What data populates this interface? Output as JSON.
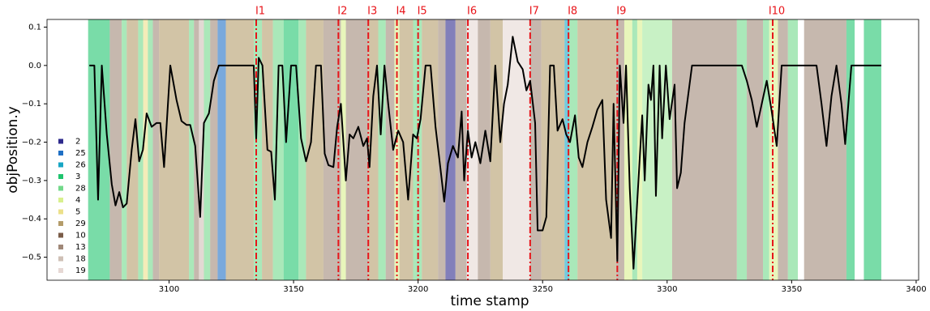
{
  "chart_data": {
    "type": "line",
    "xlabel": "time stamp",
    "ylabel": "objPosition.y",
    "xlim": [
      3051,
      3401
    ],
    "ylim": [
      -0.56,
      0.12
    ],
    "xticks": [
      3100,
      3150,
      3200,
      3250,
      3300,
      3350,
      3400
    ],
    "yticks": [
      0.1,
      {
        "value": 0,
        "label": "0.0"
      },
      {
        "value": -0.1,
        "label": "−0.1"
      },
      {
        "value": -0.2,
        "label": "−0.2"
      },
      {
        "value": -0.3,
        "label": "−0.3"
      },
      {
        "value": -0.4,
        "label": "−0.4"
      },
      {
        "value": -0.5,
        "label": "−0.5"
      }
    ],
    "legend_position": "lower left",
    "legend": [
      {
        "name": "2",
        "color": "#2e2a8c"
      },
      {
        "name": "25",
        "color": "#1f6fc4"
      },
      {
        "name": "26",
        "color": "#17a6c4"
      },
      {
        "name": "3",
        "color": "#1fc46e"
      },
      {
        "name": "28",
        "color": "#72d98a"
      },
      {
        "name": "4",
        "color": "#d8f08e"
      },
      {
        "name": "5",
        "color": "#ece08a"
      },
      {
        "name": "29",
        "color": "#b49c6a"
      },
      {
        "name": "10",
        "color": "#7a5c48"
      },
      {
        "name": "13",
        "color": "#a08878"
      },
      {
        "name": "18",
        "color": "#cfc0b6"
      },
      {
        "name": "19",
        "color": "#e6d8d4"
      }
    ],
    "span_opacity": 0.6,
    "spans": [
      {
        "start": 3067.5,
        "end": 3076.2,
        "color": "#1fc46e"
      },
      {
        "start": 3076.2,
        "end": 3081,
        "color": "#a08878"
      },
      {
        "start": 3081,
        "end": 3083,
        "color": "#72d98a"
      },
      {
        "start": 3083,
        "end": 3087.6,
        "color": "#b49c6a"
      },
      {
        "start": 3087.6,
        "end": 3089.6,
        "color": "#72d98a"
      },
      {
        "start": 3089.6,
        "end": 3091.5,
        "color": "#ece08a"
      },
      {
        "start": 3091.5,
        "end": 3093.5,
        "color": "#72d98a"
      },
      {
        "start": 3093.5,
        "end": 3096,
        "color": "#a08878"
      },
      {
        "start": 3096,
        "end": 3108,
        "color": "#b49c6a"
      },
      {
        "start": 3108,
        "end": 3110,
        "color": "#72d98a"
      },
      {
        "start": 3110,
        "end": 3112,
        "color": "#a08878"
      },
      {
        "start": 3112,
        "end": 3114,
        "color": "#cfc0b6"
      },
      {
        "start": 3114,
        "end": 3116.5,
        "color": "#72d98a"
      },
      {
        "start": 3116.5,
        "end": 3119.5,
        "color": "#a08878"
      },
      {
        "start": 3119.5,
        "end": 3122.8,
        "color": "#1f6fc4"
      },
      {
        "start": 3122.8,
        "end": 3134,
        "color": "#b49c6a"
      },
      {
        "start": 3134,
        "end": 3137.3,
        "color": "#72d98a"
      },
      {
        "start": 3137.3,
        "end": 3141.7,
        "color": "#b49c6a"
      },
      {
        "start": 3141.7,
        "end": 3146,
        "color": "#72d98a"
      },
      {
        "start": 3146,
        "end": 3152,
        "color": "#1fc46e"
      },
      {
        "start": 3152,
        "end": 3155,
        "color": "#72d98a"
      },
      {
        "start": 3155,
        "end": 3162,
        "color": "#b49c6a"
      },
      {
        "start": 3162,
        "end": 3169,
        "color": "#a08878"
      },
      {
        "start": 3169,
        "end": 3171,
        "color": "#d8f08e"
      },
      {
        "start": 3171,
        "end": 3180,
        "color": "#a08878"
      },
      {
        "start": 3180,
        "end": 3184,
        "color": "#b49c6a"
      },
      {
        "start": 3184,
        "end": 3187,
        "color": "#72d98a"
      },
      {
        "start": 3187,
        "end": 3190.5,
        "color": "#a08878"
      },
      {
        "start": 3190.5,
        "end": 3192.5,
        "color": "#d8f08e"
      },
      {
        "start": 3192.5,
        "end": 3198,
        "color": "#b49c6a"
      },
      {
        "start": 3198,
        "end": 3201.5,
        "color": "#72d98a"
      },
      {
        "start": 3201.5,
        "end": 3208,
        "color": "#b49c6a"
      },
      {
        "start": 3208,
        "end": 3211,
        "color": "#a08878"
      },
      {
        "start": 3211,
        "end": 3215,
        "color": "#2e2a8c"
      },
      {
        "start": 3215,
        "end": 3219.5,
        "color": "#a08878"
      },
      {
        "start": 3219.5,
        "end": 3224,
        "color": "#e6d8d4"
      },
      {
        "start": 3224,
        "end": 3229,
        "color": "#a08878"
      },
      {
        "start": 3229,
        "end": 3234,
        "color": "#b49c6a"
      },
      {
        "start": 3234,
        "end": 3245,
        "color": "#e6d8d4"
      },
      {
        "start": 3245,
        "end": 3249.5,
        "color": "#a08878"
      },
      {
        "start": 3249.5,
        "end": 3258.8,
        "color": "#b49c6a"
      },
      {
        "start": 3258.8,
        "end": 3260.7,
        "color": "#17a6c4"
      },
      {
        "start": 3260.7,
        "end": 3264,
        "color": "#72d98a"
      },
      {
        "start": 3264,
        "end": 3279.5,
        "color": "#b49c6a"
      },
      {
        "start": 3279.5,
        "end": 3282.8,
        "color": "#a08878"
      },
      {
        "start": 3282.8,
        "end": 3286,
        "color": "#d8f08e"
      },
      {
        "start": 3286,
        "end": 3288,
        "color": "#72d98a"
      },
      {
        "start": 3288,
        "end": 3290,
        "color": "#d8f08e"
      },
      {
        "start": 3290,
        "end": 3302,
        "color": "#a3e89e"
      },
      {
        "start": 3302,
        "end": 3328,
        "color": "#a08878"
      },
      {
        "start": 3328,
        "end": 3332,
        "color": "#72d98a"
      },
      {
        "start": 3332,
        "end": 3338.5,
        "color": "#a08878"
      },
      {
        "start": 3338.5,
        "end": 3341,
        "color": "#72d98a"
      },
      {
        "start": 3341,
        "end": 3344.5,
        "color": "#d8f08e"
      },
      {
        "start": 3344.5,
        "end": 3348.5,
        "color": "#a08878"
      },
      {
        "start": 3348.5,
        "end": 3352.5,
        "color": "#72d98a"
      },
      {
        "start": 3355,
        "end": 3372,
        "color": "#a08878"
      },
      {
        "start": 3372,
        "end": 3375.3,
        "color": "#1fc46e"
      },
      {
        "start": 3379,
        "end": 3386,
        "color": "#1fc46e"
      }
    ],
    "markers_color": "#e8141a",
    "markers": [
      {
        "x": 3135,
        "label": "I1"
      },
      {
        "x": 3168,
        "label": "I2"
      },
      {
        "x": 3180,
        "label": "I3"
      },
      {
        "x": 3191.5,
        "label": "I4"
      },
      {
        "x": 3200,
        "label": "I5"
      },
      {
        "x": 3220,
        "label": "I6"
      },
      {
        "x": 3245,
        "label": "I7"
      },
      {
        "x": 3260.4,
        "label": "I8"
      },
      {
        "x": 3280,
        "label": "I9"
      },
      {
        "x": 3342.4,
        "label": "I10"
      }
    ],
    "x": [
      3068,
      3070,
      3071.5,
      3073,
      3075,
      3077,
      3078.5,
      3080,
      3081.5,
      3083,
      3085,
      3086.5,
      3088,
      3089.5,
      3091,
      3093,
      3095,
      3096.5,
      3098,
      3100.5,
      3103,
      3105,
      3107,
      3108.5,
      3110.5,
      3112.5,
      3114,
      3116,
      3118,
      3120,
      3125,
      3130,
      3134,
      3135,
      3136,
      3137.5,
      3139.5,
      3141,
      3142.5,
      3144,
      3145.5,
      3147,
      3149,
      3151,
      3153,
      3155,
      3157,
      3159,
      3161,
      3162.5,
      3164,
      3166,
      3167.5,
      3169,
      3171,
      3172.5,
      3174,
      3176,
      3178,
      3179.5,
      3180.5,
      3182,
      3183.5,
      3185,
      3186.5,
      3188,
      3190,
      3192,
      3194,
      3196,
      3198,
      3199.5,
      3201,
      3203,
      3205,
      3207,
      3209,
      3210.5,
      3212,
      3214,
      3216,
      3217.5,
      3218.5,
      3220,
      3221.5,
      3223,
      3225,
      3227,
      3229,
      3231,
      3233,
      3234.5,
      3236,
      3238,
      3240,
      3242,
      3243.5,
      3245,
      3247,
      3248,
      3250,
      3251.5,
      3253,
      3254.5,
      3256,
      3258,
      3259.5,
      3261,
      3263,
      3264.5,
      3266,
      3268,
      3270,
      3272,
      3274,
      3275.5,
      3277.5,
      3278.5,
      3280,
      3281,
      3282.5,
      3283.5,
      3285,
      3286.5,
      3288,
      3290,
      3291,
      3292.5,
      3293.5,
      3294.5,
      3295.5,
      3297,
      3298,
      3299.5,
      3301,
      3303,
      3304,
      3305.5,
      3307,
      3310,
      3320,
      3330,
      3332,
      3334,
      3336,
      3338,
      3340,
      3342,
      3344,
      3346,
      3360,
      3362,
      3364,
      3366,
      3368,
      3370,
      3371.5,
      3374,
      3386
    ],
    "series": [
      {
        "color": "#000000",
        "values": [
          0,
          0,
          -0.35,
          0,
          -0.18,
          -0.31,
          -0.365,
          -0.33,
          -0.37,
          -0.36,
          -0.22,
          -0.14,
          -0.25,
          -0.22,
          -0.125,
          -0.16,
          -0.15,
          -0.15,
          -0.265,
          0,
          -0.09,
          -0.145,
          -0.155,
          -0.155,
          -0.21,
          -0.395,
          -0.15,
          -0.125,
          -0.04,
          0,
          0,
          0,
          0,
          -0.19,
          0.02,
          0,
          -0.22,
          -0.225,
          -0.35,
          0,
          0,
          -0.2,
          0,
          0,
          -0.19,
          -0.25,
          -0.2,
          0,
          0,
          -0.23,
          -0.26,
          -0.265,
          -0.16,
          -0.1,
          -0.3,
          -0.18,
          -0.19,
          -0.16,
          -0.21,
          -0.19,
          -0.265,
          -0.08,
          0,
          -0.18,
          0,
          -0.1,
          -0.22,
          -0.17,
          -0.2,
          -0.35,
          -0.18,
          -0.19,
          -0.14,
          0,
          0,
          -0.16,
          -0.27,
          -0.355,
          -0.255,
          -0.21,
          -0.24,
          -0.12,
          -0.3,
          -0.17,
          -0.24,
          -0.2,
          -0.255,
          -0.17,
          -0.25,
          0,
          -0.2,
          -0.1,
          -0.05,
          0.075,
          0.01,
          -0.01,
          -0.065,
          -0.04,
          -0.15,
          -0.43,
          -0.43,
          -0.395,
          0,
          0,
          -0.17,
          -0.14,
          -0.18,
          -0.2,
          -0.13,
          -0.24,
          -0.265,
          -0.2,
          -0.16,
          -0.115,
          -0.09,
          -0.35,
          -0.45,
          -0.1,
          -0.51,
          0,
          -0.15,
          0,
          -0.32,
          -0.53,
          -0.355,
          -0.13,
          -0.3,
          -0.05,
          -0.09,
          0,
          -0.34,
          0,
          -0.19,
          0,
          -0.14,
          -0.05,
          -0.32,
          -0.28,
          -0.15,
          0,
          0,
          0,
          -0.04,
          -0.09,
          -0.16,
          -0.1,
          -0.04,
          -0.12,
          -0.21,
          0,
          0,
          -0.1,
          -0.21,
          -0.08,
          0,
          -0.1,
          -0.205,
          0,
          0
        ]
      }
    ]
  }
}
